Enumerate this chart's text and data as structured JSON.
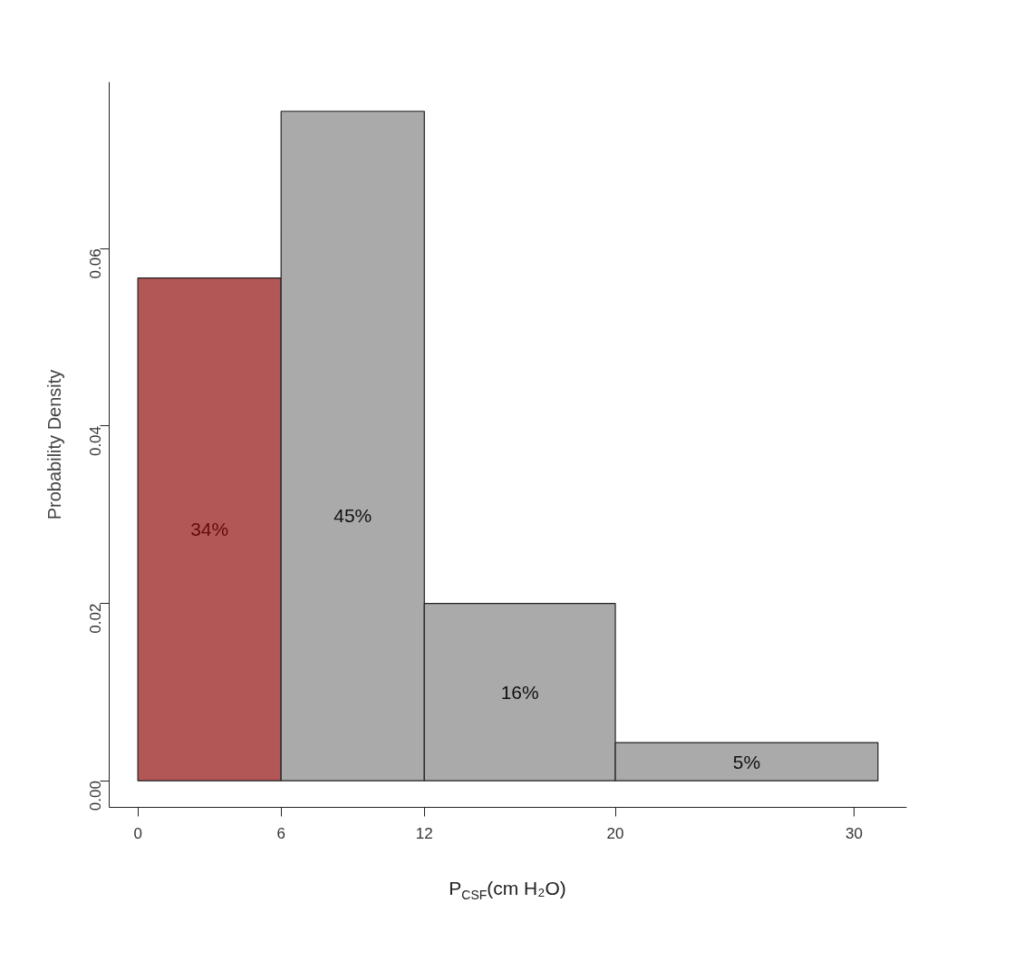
{
  "chart_data": {
    "type": "histogram",
    "xlabel": "P$_{CSF}$(cm H₂O)",
    "ylabel": "Probability Density",
    "bins": [
      0,
      6,
      12,
      20,
      31
    ],
    "values": [
      0.0567,
      0.0755,
      0.02,
      0.0043
    ],
    "colors": [
      "#b35656",
      "#aaaaaa",
      "#aaaaaa",
      "#aaaaaa"
    ],
    "xlim": [
      -1.2,
      32.2
    ],
    "ylim": [
      -0.003,
      0.0788
    ],
    "xticks": [
      0,
      6,
      12,
      20,
      30
    ],
    "yticks": [
      {
        "value": 0,
        "label": "0.00"
      },
      {
        "value": 0.02,
        "label": "0.02"
      },
      {
        "value": 0.04,
        "label": "0.04"
      },
      {
        "value": 0.06,
        "label": "0.06"
      }
    ],
    "annotations": [
      "34%",
      "45%",
      "16%",
      "5%"
    ],
    "grid": false
  }
}
